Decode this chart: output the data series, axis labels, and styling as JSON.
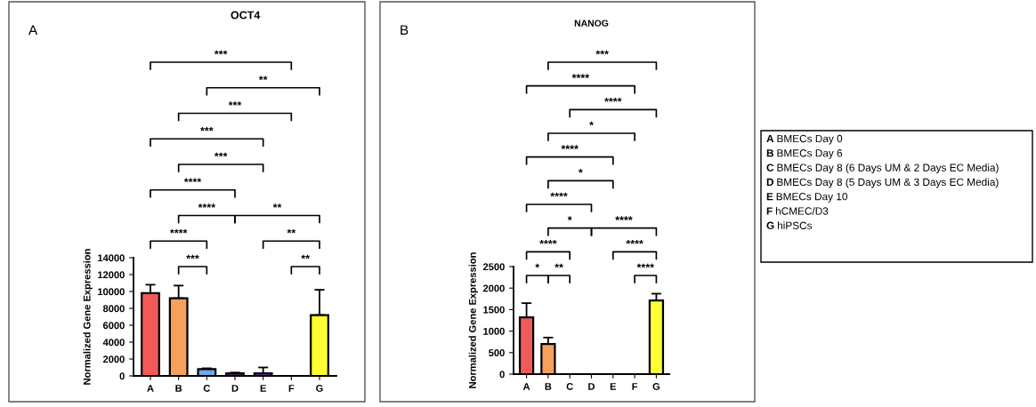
{
  "chart_data": [
    {
      "type": "bar",
      "title": "OCT4",
      "ylabel": "Normalized Gene Expression",
      "categories": [
        "A",
        "B",
        "C",
        "D",
        "E",
        "F",
        "G"
      ],
      "values": [
        9800,
        9200,
        800,
        300,
        300,
        0,
        7200
      ],
      "colors": [
        "#f25a5a",
        "#f7a05c",
        "#6fa8e8",
        "#5b2c83",
        "#7030a0",
        "#000000",
        "#ffff33"
      ],
      "errors": [
        [
          9800,
          10800
        ],
        [
          9200,
          10700
        ],
        [
          800,
          900
        ],
        [
          300,
          400
        ],
        [
          300,
          1000
        ],
        null,
        [
          7200,
          10200
        ]
      ],
      "ylim": [
        0,
        14000
      ],
      "yticks": [
        0,
        2000,
        4000,
        6000,
        8000,
        10000,
        12000,
        14000
      ],
      "grid": false,
      "legend": false,
      "annotations": [
        "A",
        "***",
        "**",
        "***",
        "***",
        "***",
        "****",
        "****",
        "**",
        "****",
        "**",
        "***",
        "**"
      ]
    },
    {
      "type": "bar",
      "title": "NANOG",
      "ylabel": "Normalized Gene Expression",
      "categories": [
        "A",
        "B",
        "C",
        "D",
        "E",
        "F",
        "G"
      ],
      "values": [
        1320,
        700,
        0,
        0,
        0,
        0,
        1710
      ],
      "colors": [
        "#f25a5a",
        "#f7a05c",
        "#000000",
        "#000000",
        "#000000",
        "#000000",
        "#ffff33"
      ],
      "errors": [
        [
          1320,
          1650
        ],
        [
          700,
          850
        ],
        null,
        null,
        null,
        null,
        [
          1710,
          1870
        ]
      ],
      "ylim": [
        0,
        2500
      ],
      "yticks": [
        0,
        500,
        1000,
        1500,
        2000,
        2500
      ],
      "grid": false,
      "legend": false,
      "annotations": [
        "B",
        "***",
        "****",
        "****",
        "*",
        "****",
        "*",
        "****",
        "*",
        "****",
        "****",
        "****",
        "*",
        "**",
        "****"
      ]
    },
    {
      "type": "other",
      "annotations": [
        "A BMECs Day 0",
        "B BMECs Day 6",
        "C BMECs Day 8 (6 Days UM & 2 Days EC Media)",
        "D BMECs Day 8 (5 Days UM & 3 Days EC Media)",
        "E BMECs Day 10",
        "F hCMEC/D3",
        "G hiPSCs"
      ]
    }
  ]
}
